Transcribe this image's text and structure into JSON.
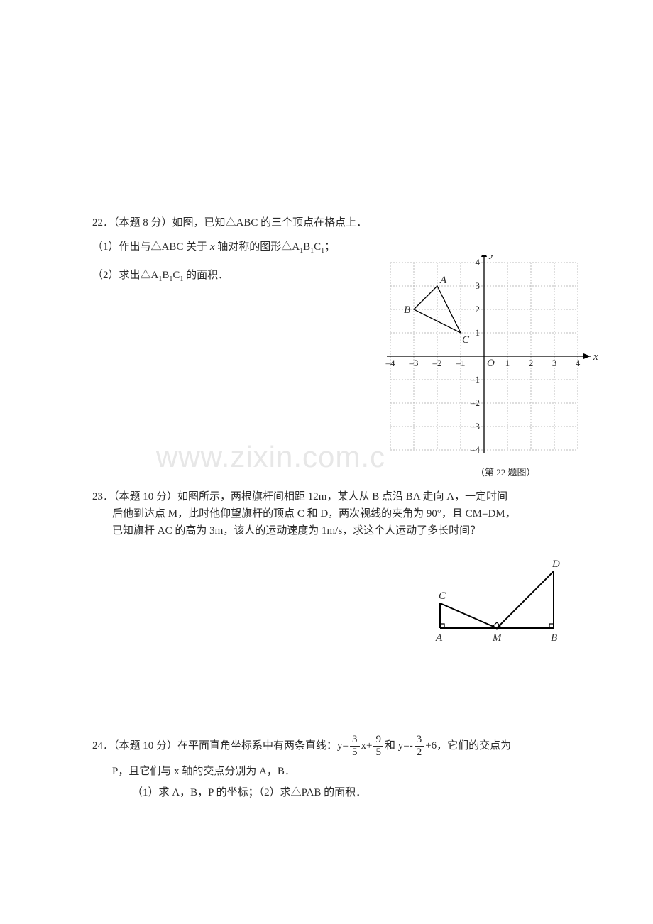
{
  "q22": {
    "number": "22．",
    "points_prefix": "（本题 ",
    "points": "8",
    "points_suffix": " 分）",
    "stem": "如图，已知△ABC 的三个顶点在格点上．",
    "part1_prefix": "（1）作出与△ABC 关于 ",
    "axis_var": "x",
    "part1_mid": " 轴对称的图形△A",
    "sub1": "1",
    "part1_b": "B",
    "part1_c": "C",
    "part1_end": "；",
    "part2": "（2）求出△A",
    "part2_b": "B",
    "part2_c": "C",
    "part2_end": " 的面积．",
    "caption": "（第 22 题图）",
    "grid": {
      "xmin": -4,
      "xmax": 4,
      "ymin": -4,
      "ymax": 4,
      "grid_color": "#bdbdbd",
      "axis_color": "#000000",
      "cell": 33,
      "triangle": {
        "A": [
          -2,
          3
        ],
        "B": [
          -3,
          2
        ],
        "C": [
          -1,
          1
        ]
      },
      "labels": {
        "A": "A",
        "B": "B",
        "C": "C",
        "O": "O",
        "x": "x",
        "y": "y"
      },
      "tick_labels_x": [
        "–4",
        "–3",
        "–2",
        "–1",
        "1",
        "2",
        "3",
        "4"
      ],
      "tick_labels_y_pos": [
        "1",
        "2",
        "3",
        "4"
      ],
      "tick_labels_y_neg": [
        "–1",
        "–2",
        "–3",
        "–4"
      ]
    }
  },
  "q23": {
    "number": "23．",
    "points_prefix": "（本题 ",
    "points": "10",
    "points_suffix": " 分）",
    "l1": "如图所示，两根旗杆间相距 12m，某人从 B 点沿 BA 走向 A，一定时间",
    "l2": "后他到达点 M，此时他仰望旗杆的顶点 C 和 D，两次视线的夹角为 90°，且 CM=DM，",
    "l3": "已知旗杆 AC 的高为 3m，该人的运动速度为 1m/s，求这个人运动了多长时间？",
    "fig": {
      "A": "A",
      "B": "B",
      "C": "C",
      "D": "D",
      "M": "M",
      "line_color": "#000000",
      "line_width": 2
    }
  },
  "q24": {
    "number": "24．",
    "points_prefix": "（本题 ",
    "points": "10",
    "points_suffix": " 分）",
    "stem_a": "在平面直角坐标系中有两条直线：y=",
    "f1_num": "3",
    "f1_den": "5",
    "mid1": "x+",
    "f2_num": "9",
    "f2_den": "5",
    "mid2": "和 y=-",
    "f3_num": "3",
    "f3_den": "2",
    "mid3": "+6，它们的交点为",
    "body": "P，且它们与 x 轴的交点分别为 A，B．",
    "parts": "（1）求 A，B，P 的坐标；（2）求△PAB 的面积．"
  },
  "watermark": "www.zixin.com.c"
}
